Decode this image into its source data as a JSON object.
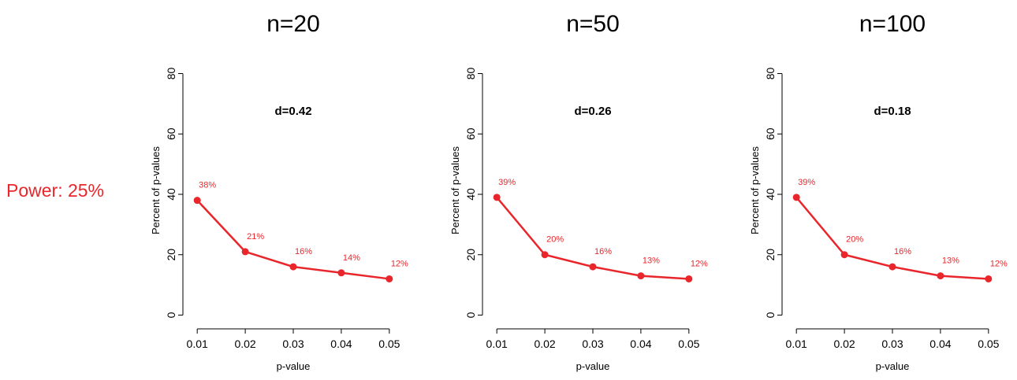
{
  "row_label": "Power: 25%",
  "colors": {
    "series": "#e8262b",
    "axis": "#000000"
  },
  "chart_data": [
    {
      "type": "line",
      "title": "n=20",
      "annotation": "d=0.42",
      "xlabel": "p-value",
      "ylabel": "Percent of p-values",
      "x": [
        0.01,
        0.02,
        0.03,
        0.04,
        0.05
      ],
      "x_tick_labels": [
        "0.01",
        "0.02",
        "0.03",
        "0.04",
        "0.05"
      ],
      "y_ticks": [
        0,
        20,
        40,
        60,
        80
      ],
      "y_tick_labels": [
        "0",
        "20",
        "40",
        "60",
        "80"
      ],
      "xlim": [
        0.008,
        0.052
      ],
      "ylim": [
        -3,
        83
      ],
      "values": [
        38,
        21,
        16,
        14,
        12
      ],
      "data_labels": [
        "38%",
        "21%",
        "16%",
        "14%",
        "12%"
      ],
      "grid": false
    },
    {
      "type": "line",
      "title": "n=50",
      "annotation": "d=0.26",
      "xlabel": "p-value",
      "ylabel": "Percent of p-values",
      "x": [
        0.01,
        0.02,
        0.03,
        0.04,
        0.05
      ],
      "x_tick_labels": [
        "0.01",
        "0.02",
        "0.03",
        "0.04",
        "0.05"
      ],
      "y_ticks": [
        0,
        20,
        40,
        60,
        80
      ],
      "y_tick_labels": [
        "0",
        "20",
        "40",
        "60",
        "80"
      ],
      "xlim": [
        0.008,
        0.052
      ],
      "ylim": [
        -3,
        83
      ],
      "values": [
        39,
        20,
        16,
        13,
        12
      ],
      "data_labels": [
        "39%",
        "20%",
        "16%",
        "13%",
        "12%"
      ],
      "grid": false
    },
    {
      "type": "line",
      "title": "n=100",
      "annotation": "d=0.18",
      "xlabel": "p-value",
      "ylabel": "Percent of p-values",
      "x": [
        0.01,
        0.02,
        0.03,
        0.04,
        0.05
      ],
      "x_tick_labels": [
        "0.01",
        "0.02",
        "0.03",
        "0.04",
        "0.05"
      ],
      "y_ticks": [
        0,
        20,
        40,
        60,
        80
      ],
      "y_tick_labels": [
        "0",
        "20",
        "40",
        "60",
        "80"
      ],
      "xlim": [
        0.008,
        0.052
      ],
      "ylim": [
        -3,
        83
      ],
      "values": [
        39,
        20,
        16,
        13,
        12
      ],
      "data_labels": [
        "39%",
        "20%",
        "16%",
        "13%",
        "12%"
      ],
      "grid": false
    }
  ]
}
